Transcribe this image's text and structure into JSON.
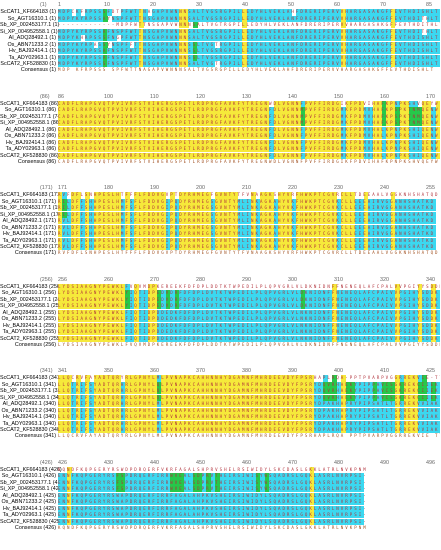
{
  "colors": {
    "identical": "#f6e93a",
    "conserved": "#3bd8f0",
    "similar": "#26c84a",
    "residue_text": "#b0303a",
    "consensus_text": "#a05020"
  },
  "blocks": [
    {
      "ruler": {
        "start_label": "(1)",
        "ticks": [
          "1",
          "10",
          "20",
          "30",
          "40",
          "50",
          "60",
          "70",
          "85"
        ]
      },
      "rows": [
        {
          "label": "ScCAT1_KF664183",
          "offset": "(1)",
          "seq": "MDPCKFRPSSSFDTPFWTTNAGAPVWNNNSALTVGSRGPILLEDYHLVEKLAHFDRERIPERVVHARGASAKGFFEVTHDISHLT"
        },
        {
          "label": "So_AGT16310.1",
          "offset": "(1)",
          "seq": "MDPYKYRPSSAYNSPFWTTNSGAPVWNNNSALTVGSRGPILLEDYHLVEKLANFDRERIPERVVHARGASAKGFFEVTHDITHLT"
        },
        {
          "label": "Sb_XP_002453177.1",
          "offset": "(1)",
          "seq": "-------------MDPFWTTNSGAPVWNNNSALTVGTRGPILLEDYHLVEKLANFDRERIPERVVHARGASAKGFFEVTHDITHLT"
        },
        {
          "label": "Si_XP_004952558.1",
          "offset": "(1)",
          "seq": "MDPYKYRPSSAFNSPFWTTNSGAPVWNNNSALTVGSRGPILLEDYHLVEKLANFDRERIPERVVHARGASAKGFFEVTHDITHLT"
        },
        {
          "label": "AI_ADQ28492.1",
          "offset": "(1)",
          "seq": "MDPYKHRPSSSFNGPFWTTNSGAPVWNNNSALTVGSRGPILLEDYHLVEKLANFDRERIPERVVHARGASAKGFFEVTHDISHLT"
        },
        {
          "label": "Os_ABN71233.2",
          "offset": "(1)",
          "seq": "MDPYKYRPASSYNSPFFTTNSGAPVWNNNSSLTVGTRGPILLEDYHLVEKLANFDRERIPERVVHARGASAKGFFEVTHDISHLT"
        },
        {
          "label": "Hv_BAJ92414.1",
          "offset": "(1)",
          "seq": "MDPYKYRPSSAFNSPFWTTNSGAPVWNNNSSLTVGSRGPILLEDYHLVEKLANFDRERIPERVVHARGASAKGFFEVTHDISHLT"
        },
        {
          "label": "Ta_ADY02963.1",
          "offset": "(1)",
          "seq": "MDPYKYRPSSAFNSPFWTTNSGAPVWNNNSSLTVGSRGPILLEDYHLVEKLANFDRERIPERVVHARGASAKGFFEVTHDISHLT"
        },
        {
          "label": "ScCAT2_KF528830",
          "offset": "(1)",
          "seq": "MDPYKYRPSSSFNSPFWTTNSGAPVWNNNSALTVGTRGPILLEDYHLVEKLANFDRERIPERVVHARGASAKGFFEVTHDISHLT"
        },
        {
          "label": "Consensus",
          "offset": "(1)",
          "seq": "MDP KFRPSSS  SPFWTTNAGAPVWNNNSALTVGSRGPILLEDYHLVEKLAHFDRERIPERVVHARGASAKGFFEVTHDISHLT"
        }
      ]
    },
    {
      "ruler": {
        "start_label": "(86)",
        "ticks": [
          "86",
          "100",
          "110",
          "120",
          "130",
          "140",
          "150",
          "160",
          "170"
        ]
      },
      "rows": [
        {
          "label": "ScCAT1_KF664183",
          "offset": "(86)",
          "seq": "CADFLRAPGVQTPVIVRFSTVIHERGSPETLRDPRGFAVKFYTREGNWDLVGNNFPVFFIRDGIKFPDVIHAFKPNPKSHVQEYW"
        },
        {
          "label": "So_AGT16310.1",
          "offset": "(86)",
          "seq": "CADFLRAPGVQTPVIVRFSTVIHERGSPETLRDPRGFAVKFYTREGNFDLVGNNMPVFFIRDGMKFPDMVHAFKPSPKTNMQENW"
        },
        {
          "label": "Sb_XP_002453177.1",
          "offset": "(74)",
          "seq": "CADFLRAPGVQTPVIVRFSTVIHERGSPETLRDPRGFAVKFYTREGNFDLVGNNMPVFFIRDGMKFPDMVHAFKPSPKTNMQENW"
        },
        {
          "label": "Si_XP_004952558.1",
          "offset": "(86)",
          "seq": "CADFLRAPGVQTPVIVRFSTVIHERGSPETLRDPRGFAVKFYTREGNFDLVGNNMPVFFIRDGMKFPDMVHAFKPSPKTNMQENW"
        },
        {
          "label": "AI_ADQ28492.1",
          "offset": "(86)",
          "seq": "CADFLRAPGVQTPVIVRFSTVIHERGSPETLRDPRGFAVKFYTREGNFDLVGNNFPVFFIRDGMKFPDMVHALKPNPKSHIQENW"
        },
        {
          "label": "Os_ABN71233.2",
          "offset": "(86)",
          "seq": "CADFLRAPGVQTPVIVRFSTVIHERGSPETLRDPRGFAVKFYTREGNFDLVGNNFPVFFIRDGMKFPDMVHALKPNPKSHIQENW"
        },
        {
          "label": "Hv_BAJ92414.1",
          "offset": "(86)",
          "seq": "CADFLRAPGVQTPVIVRFSTVIHERGSPETLRDPRGFAVKFYTREGNFDLVGNNFPVFFIRDGMKFPDMVHALKPNPKSHIQENW"
        },
        {
          "label": "Ta_ADY02963.1",
          "offset": "(86)",
          "seq": "CADFLRAPGVQTPVIVRFSTVIHERGSPETLRDPRGFAVKFYTREGNFDLVGNNFPVFFIRDGMKFPDMVHALKPNPKSHIQENW"
        },
        {
          "label": "ScCAT2_KF528830",
          "offset": "(86)",
          "seq": "CADFLRAPGVQTPVIVRFSTVIHERGSPETLRDPRGFAVKFYTREGNFDLVGNNFPVFFIRDGMKFPDMVHALKPNPKSHIQENW"
        },
        {
          "label": "Consensus",
          "offset": "(86)",
          "seq": "CADFLRAPGVQTPVIVRFSTVIHERGSPETLRDPRGFAVKFYTREGNWDLVGNNFPVFFIRDGIKFPDVIHAFKPNPKSHVQEYW"
        }
      ]
    },
    {
      "ruler": {
        "start_label": "(171)",
        "ticks": [
          "171",
          "180",
          "190",
          "200",
          "210",
          "220",
          "230",
          "240",
          "255"
        ]
      },
      "rows": [
        {
          "label": "ScCAT1_KF664183",
          "offset": "(171)",
          "seq": "RVFDFLSNHPESLHTFFFLFDDVGVPTDYRHMEGFGVNTYTFVNAAGKSHYVRFHWKPTCGVRCLLTDEEAALVGGKNHSHATQD"
        },
        {
          "label": "So_AGT16310.1",
          "offset": "(171)",
          "seq": "RILDFFSHHPESLHMFSFLFDDVGIPQDYRHMEGSGVNTYMLINKAGKAHYVKFHWKPTCGVKCLLEEEAIRVGGANHSHATKD"
        },
        {
          "label": "Sb_XP_002453177.1",
          "offset": "(159)",
          "seq": "RILDFFSHHPESLHMFSFLFDDVGIPQDYRHMEGSGVNTYMLINKAGKAHYVKFHWKPTCGVKCLLEEEAIRVGGANHSHATKD"
        },
        {
          "label": "Si_XP_004952558.1",
          "offset": "(171)",
          "seq": "RILDFFSHHPESLHMFSFLFDDVGIPQDYRHMEGSGVNTYMLINKAGKAHYVKFHWKPTCGVKCLLEEEAIRVGGANHSHATKD"
        },
        {
          "label": "AI_ADQ28492.1",
          "offset": "(171)",
          "seq": "RVLDFFSHHPESLHMFSFLFDDVGIPQDYRHMEGSGVNTYMLINKAGKAHYVKFHWKPTCGVKCLLEEEAIRVGGANHSHATKD"
        },
        {
          "label": "Os_ABN71233.2",
          "offset": "(171)",
          "seq": "RVLDFFSHHPESLHMFSFLFDDVGIPQDYRHMEGSGVNTYMLINKAGKAHYVKFHWKPTCGVKCLLEEEAIRVGGANHSHATKD"
        },
        {
          "label": "Hv_BAJ92414.1",
          "offset": "(171)",
          "seq": "RVLDFFSHHPESLHMFSFLFDDVGIPQDYRHMEGSGVNTYMLINKAGKAHYVKFHWKPTCGVKCLLEEEAIRVGGANHSHATKD"
        },
        {
          "label": "Ta_ADY02963.1",
          "offset": "(171)",
          "seq": "RVLDFFSHHPESLHMFSFLFDDVGIPQDYRHMEGSGVNTYMLINKAGKAHYVKFHWKPTCGVKCLLEEEAIRVGGANHSHATKD"
        },
        {
          "label": "ScCAT2_KF528830",
          "offset": "(171)",
          "seq": "RVLDFFSHHPESLHMFSFLFDDVGIPQDYRHMEGSGVNTYMLINKAGKAHYVKFHWKPTCGVKCLLEEEAIRVGGANHSHATKD"
        },
        {
          "label": "Consensus",
          "offset": "(171)",
          "seq": "RVFDFLSNHPESLHTFFFLFDDVGVPTDYRHMEGFGVNTYTFVNAAGKSHYVRFHWKPTCGVRCLLTDEEAALVGGKNHSHATQD"
        }
      ]
    },
    {
      "ruler": {
        "start_label": "(256)",
        "ticks": [
          "256",
          "260",
          "270",
          "280",
          "290",
          "300",
          "310",
          "320",
          "340"
        ]
      },
      "rows": [
        {
          "label": "ScCAT1_KF664183",
          "offset": "(256)",
          "seq": "LYDSIAAGNYPEWKLFVQVMDPKEREEKFDFDPLDDTKTWPEDILPLQPVGRLVLDKNIDNFFNENEQLAFCPALVVPGIYYSDDK"
        },
        {
          "label": "So_AGT16310.1",
          "offset": "(256)",
          "seq": "LYDSIAAGNYPEWKLYIQTIDPEDVDRFDFDPLDVTKTWPEDILPLQPVGRLVLDKNIDNFFNENEQLAFCPAIVVPGIHYSDDK"
        },
        {
          "label": "Sb_XP_002453177.1",
          "offset": "(244)",
          "seq": "LYDSIAAGNYPEWKLYIQTIDPEDVDRFDFDPLDVTKTWPEDILPLQPVGRLVLDKNIDNFFNENEQLAFCPAIVVPGIHYSDDK"
        },
        {
          "label": "Si_XP_004952558.1",
          "offset": "(256)",
          "seq": "LYDSIAAGNYPEWKLYIQTIDPEDVDRFDFDPLDVTKTWPEDILPLQPVGRLVLDKNIDNFFNENEQLAFCPAIVVPGIHYSDDK"
        },
        {
          "label": "AI_ADQ28492.1",
          "offset": "(255)",
          "seq": "LYDSIAAGNYPEWKLFIQTIDPDDEDKFDFDPLDVTKTWPEDILPLQPVGRLVLNKNIDNFFNENEQLAFCPAIVVPGIHYSDDK"
        },
        {
          "label": "Os_ABN71233.2",
          "offset": "(255)",
          "seq": "LYDSIAAGNYPEWKLFIQTIDPDDEDKFDFDPLDVTKTWPEDILPLQPVGRLVLNKNIDNFFNENEQLAFCPAIVVPGIHYSDDK"
        },
        {
          "label": "Hv_BAJ92414.1",
          "offset": "(255)",
          "seq": "LYDSIAAGNYPEWKLFIQTIDPDDEDKFDFDPLDVTKTWPEDILPLQPVGRLVLNKNIDNFFNENEQLAFCPAIVVPGIHYSDDK"
        },
        {
          "label": "Ta_ADY02963.1",
          "offset": "(255)",
          "seq": "LYDSIAAGNYPEWKLFIQTIDPDDEDKFDFDPLDVTKTWPEDILPLQPVGRLVLNKNIDNFFNENEQLAFCPAIVVPGIHYSDDK"
        },
        {
          "label": "ScCAT2_KF528830",
          "offset": "(255)",
          "seq": "LYDSIAAGNYPEWKLFIQTIDPDDEDKFDFDPLDVTKTWPEDILPLQPVGRLVLNKNIDNFFNENEQLAFCPAIVVPGIHYSDDK"
        },
        {
          "label": "Consensus",
          "offset": "(256)",
          "seq": "LYDSIAAGNYPEWKLFVQVMDPKEREEKFDFDPLDDTKTWPEDILPLQPVGRLVLDKNIDNFFNENEQLAFCPALVVPGIYYSDDK"
        }
      ]
    },
    {
      "ruler": {
        "start_label": "(341)",
        "ticks": [
          "341",
          "350",
          "360",
          "370",
          "380",
          "390",
          "400",
          "410",
          "425"
        ]
      },
      "rows": [
        {
          "label": "ScCAT1_KF664183",
          "offset": "(341)",
          "seq": "LLQCRVFAYADTQRYRLGPNYLMLPVNAPKCAHHNNHYDGAMNFMHRDEEVDYFPSRHAPLRQA-PPTPVARPVGGRREKVIE-TT"
        },
        {
          "label": "So_AGT16310.1",
          "offset": "(341)",
          "seq": "LLQTRIFSYADTQRHRLGPNYLQLPVNAPKCAHHNNHYDGAMNFMHRDEEVDYFPSRYDQVRHAEKYPIPPAVCSGKREKCIIEK-"
        },
        {
          "label": "Sb_XP_002453177.1",
          "offset": "(329)",
          "seq": "LLQTRIFSYADTQRHRLGPNYLQLPVNAPKCAHHNNHYDGAMNFMHRDEEVDYFPSRYDQVRHAEKYPIPPAVCSGKREKCIIEK-"
        },
        {
          "label": "Si_XP_004952558.1",
          "offset": "(341)",
          "seq": "LLQTRIFSYADTQRHRLGPNYLQLPVNAPKCAHHNNHYDGAMNFMHRDEEVDYFPSRYDQVRHAEKYPIPPAVCSGKREKCIIEK-"
        },
        {
          "label": "AI_ADQ28492.1",
          "offset": "(340)",
          "seq": "LLQTRIFSYADTQRHRLGPNYLMLPVNAPKCAHHNNHYDGAMNFMHRDEEVDYFPSRYDPAKHAPRYPIPSATLTGRREKVVIAK-"
        },
        {
          "label": "Os_ABN71233.2",
          "offset": "(340)",
          "seq": "LLQTRIFSYADTQRHRLGPNYLMLPVNAPKCAHHNNHYDGAMNFMHRDEEVDYFPSRYDPAKHAPRYPIPSATLTGRREKVVIAK-"
        },
        {
          "label": "Hv_BAJ92414.1",
          "offset": "(340)",
          "seq": "LLQTRIFSYADTQRHRLGPNYLMLPVNAPKCAHHNNHYDGAMNFMHRDEEVDYFPSRYDPAKHAPRYPIPSATLTGRREKVVIAK-"
        },
        {
          "label": "Ta_ADY02963.1",
          "offset": "(340)",
          "seq": "LLQTRIFSYADTQRHRLGPNYLMLPVNAPKCAHHNNHYDGAMNFMHRDEEVDYFPSRYDPAKHAPRYPIPSATLTGRREKVVIAK-"
        },
        {
          "label": "ScCAT2_KF528830",
          "offset": "(340)",
          "seq": "LLQTRIFSYADTQRHRLGPNYLMLPVNAPKCAHHNNHYDGAMNFMHRDEEVDYFPSRYDPAKHAPRYPIPSATLTGRREKVVIAK-"
        },
        {
          "label": "Consensus",
          "offset": "(341)",
          "seq": "LLQCRVFAYADTQRYRLGPNYLMLPVNAPKCAHHNNHYDGAMNFMHRDEEVDYFPSRHAPLRQA PPTPVARPVGGRREKVIE TT"
        }
      ]
    },
    {
      "ruler": {
        "start_label": "(426)",
        "ticks": [
          "426",
          "430",
          "440",
          "450",
          "460",
          "470",
          "480",
          "490",
          "496"
        ]
      },
      "rows": [
        {
          "label": "ScCAT1_KF664183",
          "offset": "(426)",
          "seq": "KQNDFKQPGERYRSWDPDRQERFVKRFAGALSHPRVSHELRSIWIDYLSKCDASLGKKLATRLNVKPNM"
        },
        {
          "label": "So_AGT16310.1",
          "offset": "(426)",
          "seq": "ENNFKQPGERYRSFSPDRQERFIRRWVEALSDPRVTHEIRSIWISYWSQADRSLGQKLASRLNVRPSI-"
        },
        {
          "label": "Sb_XP_002453177.1",
          "offset": "(414)",
          "seq": "ENNFKQPGERYRSFSPDRQERFIRRWVEALSDPRVTHEIRSIWISYWSQADRSLGQKLASRLNVRPSI-"
        },
        {
          "label": "Si_XP_004952558.1",
          "offset": "(426)",
          "seq": "ENNFKQPGERYRSFSPDRQERFIRRWVEALSDPRVTHEIRSIWISYWSQADRSLGQKLASRLNVRPSI-"
        },
        {
          "label": "AI_ADQ28492.1",
          "offset": "(425)",
          "seq": "ENNFKQPGERYRSWAPDRQERFIRRFAGALAHPKVSHEIRSIWIDYLSQADRSLGQKLASRLNVRPSI-"
        },
        {
          "label": "Os_ABN71233.2",
          "offset": "(425)",
          "seq": "ENNFKQPGERYRSWAPDRQERFIRRFAGALAHPKVSHEIRSIWIDYLSQADRSLGQKLASRLNVRPSI-"
        },
        {
          "label": "Hv_BAJ92414.1",
          "offset": "(425)",
          "seq": "ENNFKQPGERYRSWAPDRQERFIRRFAGALAHPKVSHEIRSIWIDYLSQADRSLGQKLASRLNVRPSI-"
        },
        {
          "label": "Ta_ADY02963.1",
          "offset": "(425)",
          "seq": "ENNFKQPGERYRSWAPDRQERFIRRFAGALAHPKVSHEIRSIWIDYLSQADRSLGQKLASRLNVRPSI-"
        },
        {
          "label": "ScCAT2_KF528830",
          "offset": "(425)",
          "seq": "ENNFKQPGERYRSWAPDRQERFIRRFAGALAHPKVSHEIRSIWIDYLSQADRSLGQKLASRLNVRPSI-"
        },
        {
          "label": "Consensus",
          "offset": "(426)",
          "seq": "KQNDFKQPGERYRSWDPDRQERFVKRFAGALSHPRVSHELRSIWIDYLSKCDASLGKKLATRLNVKPNM"
        }
      ]
    }
  ]
}
